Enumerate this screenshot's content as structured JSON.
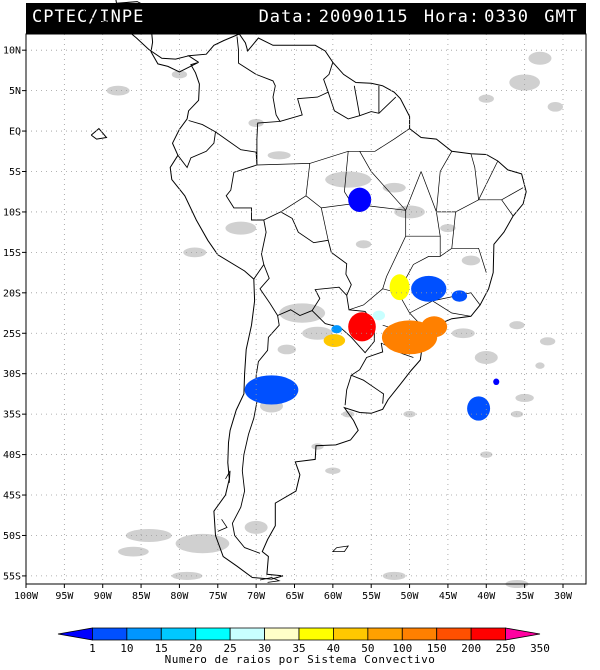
{
  "header": {
    "org": "CPTEC/INPE",
    "date_label": "Data:",
    "date_value": "20090115",
    "hour_label": "Hora:",
    "hour_value": "0330",
    "tz": "GMT"
  },
  "map": {
    "lon_labels": [
      "100W",
      "95W",
      "90W",
      "85W",
      "80W",
      "75W",
      "70W",
      "65W",
      "60W",
      "55W",
      "50W",
      "45W",
      "40W",
      "35W",
      "30W"
    ],
    "lat_labels": [
      "10N",
      "5N",
      "EQ",
      "5S",
      "10S",
      "15S",
      "20S",
      "25S",
      "30S",
      "35S",
      "40S",
      "45S",
      "50S",
      "55S"
    ],
    "lon_values": [
      -100,
      -95,
      -90,
      -85,
      -80,
      -75,
      -70,
      -65,
      -60,
      -55,
      -50,
      -45,
      -40,
      -35,
      -30
    ],
    "lat_values": [
      10,
      5,
      0,
      -5,
      -10,
      -15,
      -20,
      -25,
      -30,
      -35,
      -40,
      -45,
      -50,
      -55
    ],
    "extent": {
      "lon_min": -100,
      "lon_max": -27,
      "lat_min": -56,
      "lat_max": 12
    },
    "cloud_color": "#c8c8c8",
    "land_line_color": "#000000"
  },
  "legend": {
    "title": "Numero de raios por Sistema Convectivo",
    "ticks": [
      "1",
      "10",
      "15",
      "20",
      "25",
      "30",
      "35",
      "40",
      "50",
      "100",
      "150",
      "200",
      "250",
      "350"
    ],
    "colors": [
      "#0000ff",
      "#0050ff",
      "#0096ff",
      "#00c8ff",
      "#00ffff",
      "#c8ffff",
      "#ffffc8",
      "#ffff00",
      "#ffc800",
      "#ffa000",
      "#ff8000",
      "#ff5000",
      "#ff0000",
      "#ff00a0"
    ]
  },
  "systems": [
    {
      "lon": -56.5,
      "lat": -8.5,
      "rx": 1.5,
      "ry": 1.5,
      "color": "#0000ff"
    },
    {
      "lon": -47.5,
      "lat": -19.5,
      "rx": 2.3,
      "ry": 1.6,
      "color": "#0050ff"
    },
    {
      "lon": -51.3,
      "lat": -19.3,
      "rx": 1.3,
      "ry": 1.6,
      "color": "#ffff00"
    },
    {
      "lon": -43.5,
      "lat": -20.4,
      "rx": 1.0,
      "ry": 0.7,
      "color": "#0050ff"
    },
    {
      "lon": -56.2,
      "lat": -24.2,
      "rx": 1.8,
      "ry": 1.8,
      "color": "#ff0000"
    },
    {
      "lon": -59.8,
      "lat": -25.9,
      "rx": 1.4,
      "ry": 0.8,
      "color": "#ffc800"
    },
    {
      "lon": -59.5,
      "lat": -24.5,
      "rx": 0.7,
      "ry": 0.5,
      "color": "#0096ff"
    },
    {
      "lon": -50.0,
      "lat": -25.5,
      "rx": 3.6,
      "ry": 2.1,
      "color": "#ff8000"
    },
    {
      "lon": -46.8,
      "lat": -24.2,
      "rx": 1.7,
      "ry": 1.3,
      "color": "#ff8000"
    },
    {
      "lon": -54.0,
      "lat": -22.8,
      "rx": 0.8,
      "ry": 0.6,
      "color": "#c8ffff"
    },
    {
      "lon": -68.0,
      "lat": -32.0,
      "rx": 3.5,
      "ry": 1.8,
      "color": "#0050ff"
    },
    {
      "lon": -41.0,
      "lat": -34.3,
      "rx": 1.5,
      "ry": 1.5,
      "color": "#0050ff"
    },
    {
      "lon": -38.7,
      "lat": -31.0,
      "rx": 0.4,
      "ry": 0.4,
      "color": "#0000ff"
    }
  ]
}
